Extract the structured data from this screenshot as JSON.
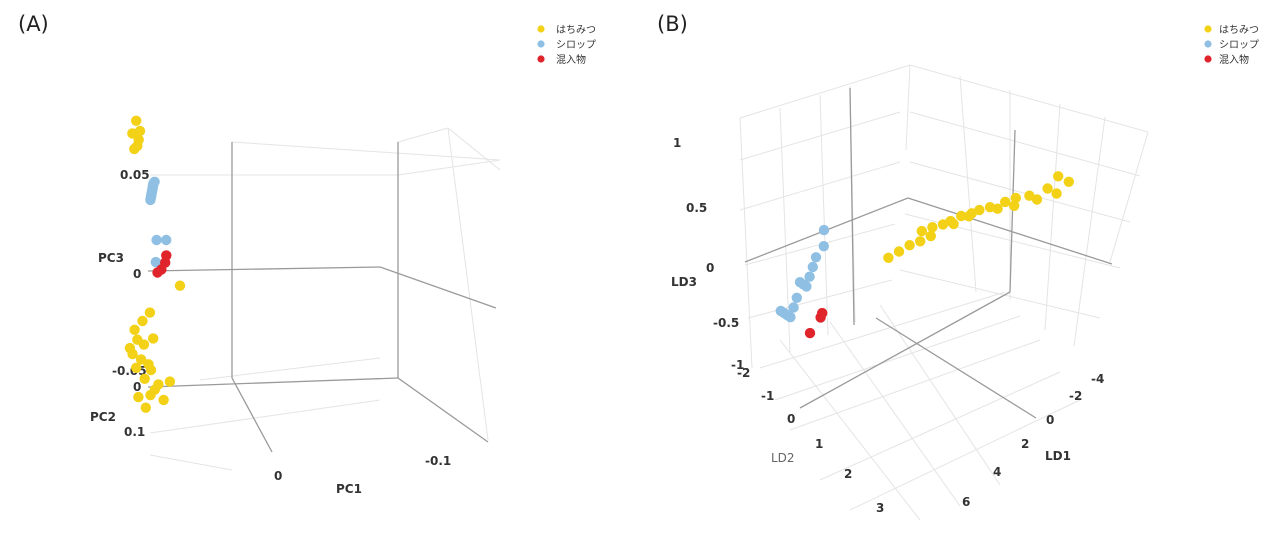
{
  "colors": {
    "honey": "#f3d116",
    "syrup": "#8fc0e4",
    "mixture": "#e0242b"
  },
  "chart_data": [
    {
      "panel": "(A)",
      "type": "scatter",
      "projection": "3d",
      "legend_position": "top-right",
      "axes": {
        "x": {
          "label": "PC1",
          "ticks": [
            "0",
            "-0.1"
          ]
        },
        "y": {
          "label": "PC2",
          "ticks": [
            "0",
            "0.1"
          ]
        },
        "z": {
          "label": "PC3",
          "ticks": [
            "0.05",
            "0",
            "-0.05"
          ]
        }
      },
      "series": [
        {
          "name": "はちみつ",
          "color": "#f3d116",
          "points": [
            [
              -0.02,
              0.09,
              0.075
            ],
            [
              -0.018,
              0.088,
              0.07
            ],
            [
              -0.022,
              0.092,
              0.068
            ],
            [
              -0.02,
              0.087,
              0.065
            ],
            [
              -0.019,
              0.09,
              0.062
            ],
            [
              -0.021,
              0.091,
              0.06
            ],
            [
              -0.01,
              0.05,
              -0.01
            ],
            [
              -0.015,
              0.08,
              -0.025
            ],
            [
              -0.018,
              0.085,
              -0.03
            ],
            [
              -0.02,
              0.092,
              -0.035
            ],
            [
              -0.019,
              0.09,
              -0.04
            ],
            [
              -0.022,
              0.095,
              -0.045
            ],
            [
              -0.017,
              0.088,
              -0.05
            ],
            [
              -0.02,
              0.09,
              -0.055
            ],
            [
              -0.016,
              0.085,
              -0.06
            ],
            [
              -0.014,
              0.08,
              -0.055
            ],
            [
              -0.012,
              0.078,
              -0.065
            ],
            [
              -0.018,
              0.09,
              -0.07
            ],
            [
              -0.015,
              0.085,
              -0.075
            ],
            [
              -0.013,
              0.082,
              -0.068
            ],
            [
              -0.011,
              0.075,
              -0.062
            ],
            [
              -0.021,
              0.093,
              -0.048
            ],
            [
              -0.016,
              0.086,
              -0.042
            ],
            [
              -0.012,
              0.08,
              -0.038
            ],
            [
              -0.014,
              0.083,
              -0.052
            ],
            [
              -0.01,
              0.07,
              -0.07
            ],
            [
              -0.008,
              0.065,
              -0.06
            ]
          ]
        },
        {
          "name": "シロップ",
          "color": "#8fc0e4",
          "points": [
            [
              -0.03,
              0.04,
              0.01
            ],
            [
              -0.035,
              0.045,
              0.009
            ],
            [
              -0.032,
              0.05,
              -0.002
            ],
            [
              -0.13,
              -0.08,
              0.02
            ],
            [
              -0.131,
              -0.08,
              0.019
            ],
            [
              -0.132,
              -0.081,
              0.018
            ],
            [
              -0.133,
              -0.082,
              0.017
            ],
            [
              -0.134,
              -0.083,
              0.016
            ],
            [
              -0.135,
              -0.084,
              0.015
            ],
            [
              -0.136,
              -0.085,
              0.014
            ],
            [
              -0.137,
              -0.086,
              0.013
            ],
            [
              -0.138,
              -0.087,
              0.012
            ],
            [
              -0.139,
              -0.088,
              0.011
            ],
            [
              -0.14,
              -0.089,
              0.01
            ],
            [
              -0.141,
              -0.09,
              0.009
            ],
            [
              -0.142,
              -0.091,
              0.008
            ]
          ]
        },
        {
          "name": "混入物",
          "color": "#e0242b",
          "points": [
            [
              -0.015,
              0.06,
              0.005
            ],
            [
              -0.016,
              0.06,
              0.001
            ],
            [
              -0.018,
              0.062,
              -0.003
            ],
            [
              -0.02,
              0.064,
              -0.005
            ]
          ]
        }
      ]
    },
    {
      "panel": "(B)",
      "type": "scatter",
      "projection": "3d",
      "legend_position": "top-right",
      "axes": {
        "x": {
          "label": "LD1",
          "ticks": [
            "-4",
            "-2",
            "0",
            "2",
            "4",
            "6"
          ]
        },
        "y": {
          "label": "LD2",
          "ticks": [
            "-2",
            "-1",
            "0",
            "1",
            "2",
            "3"
          ]
        },
        "z": {
          "label": "LD3",
          "ticks": [
            "1",
            "0.5",
            "0",
            "-0.5",
            "-1"
          ]
        }
      },
      "series": [
        {
          "name": "はちみつ",
          "color": "#f3d116",
          "points": [
            [
              -3.2,
              -1.8,
              0.5
            ],
            [
              -3.0,
              -1.7,
              0.55
            ],
            [
              -2.8,
              -1.6,
              0.45
            ],
            [
              -2.5,
              -1.4,
              0.4
            ],
            [
              -2.2,
              -1.3,
              0.38
            ],
            [
              -2.0,
              -1.2,
              0.35
            ],
            [
              -1.8,
              -1.0,
              0.32
            ],
            [
              -1.6,
              -0.9,
              0.3
            ],
            [
              -1.5,
              -0.8,
              0.28
            ],
            [
              -1.3,
              -0.7,
              0.26
            ],
            [
              -1.1,
              -0.6,
              0.22
            ],
            [
              -1.0,
              -0.5,
              0.2
            ],
            [
              -0.8,
              -0.4,
              0.18
            ],
            [
              -0.6,
              -0.3,
              0.15
            ],
            [
              -3.1,
              -1.6,
              0.42
            ],
            [
              -2.6,
              -1.5,
              0.36
            ],
            [
              -2.3,
              -1.2,
              0.33
            ],
            [
              -1.9,
              -1.1,
              0.3
            ],
            [
              -1.4,
              -0.8,
              0.25
            ],
            [
              -1.2,
              -0.6,
              0.2
            ],
            [
              -0.9,
              -0.3,
              0.12
            ],
            [
              -0.7,
              -0.2,
              0.08
            ],
            [
              -0.5,
              -0.1,
              0.05
            ],
            [
              -0.3,
              0.0,
              0.0
            ],
            [
              -0.1,
              0.1,
              -0.05
            ]
          ]
        },
        {
          "name": "シロップ",
          "color": "#8fc0e4",
          "points": [
            [
              4.5,
              -1.5,
              -0.2
            ],
            [
              4.2,
              -1.3,
              -0.3
            ],
            [
              4.0,
              -1.0,
              -0.35
            ],
            [
              3.8,
              -0.8,
              -0.4
            ],
            [
              3.6,
              -0.6,
              -0.45
            ],
            [
              3.4,
              -0.4,
              -0.5
            ],
            [
              3.2,
              -0.2,
              -0.45
            ],
            [
              3.0,
              0.0,
              -0.4
            ],
            [
              2.8,
              0.2,
              -0.5
            ],
            [
              2.6,
              0.4,
              -0.55
            ],
            [
              2.4,
              0.6,
              -0.6
            ],
            [
              2.2,
              0.8,
              -0.55
            ],
            [
              2.0,
              1.0,
              -0.5
            ],
            [
              1.8,
              1.2,
              -0.45
            ]
          ]
        },
        {
          "name": "混入物",
          "color": "#e0242b",
          "points": [
            [
              -0.5,
              1.8,
              -0.3
            ],
            [
              -0.6,
              1.9,
              -0.32
            ],
            [
              -0.4,
              2.0,
              -0.45
            ]
          ]
        }
      ]
    }
  ]
}
